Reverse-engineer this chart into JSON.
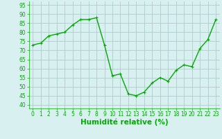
{
  "x": [
    0,
    1,
    2,
    3,
    4,
    5,
    6,
    7,
    8,
    9,
    10,
    11,
    12,
    13,
    14,
    15,
    16,
    17,
    18,
    19,
    20,
    21,
    22,
    23
  ],
  "y": [
    73,
    74,
    78,
    79,
    80,
    84,
    87,
    87,
    88,
    73,
    56,
    57,
    46,
    45,
    47,
    52,
    55,
    53,
    59,
    62,
    61,
    71,
    76,
    87
  ],
  "line_color": "#00aa00",
  "marker_color": "#00aa00",
  "bg_color": "#d8f0f0",
  "grid_color": "#b0cccc",
  "xlabel": "Humidité relative (%)",
  "tick_color": "#00aa00",
  "ylabel_ticks": [
    40,
    45,
    50,
    55,
    60,
    65,
    70,
    75,
    80,
    85,
    90,
    95
  ],
  "ylim": [
    38,
    97
  ],
  "xlim": [
    -0.5,
    23.5
  ],
  "xticks": [
    0,
    1,
    2,
    3,
    4,
    5,
    6,
    7,
    8,
    9,
    10,
    11,
    12,
    13,
    14,
    15,
    16,
    17,
    18,
    19,
    20,
    21,
    22,
    23
  ],
  "tick_fontsize": 5.5,
  "xlabel_fontsize": 7.5,
  "marker_size": 2.5,
  "line_width": 1.0
}
